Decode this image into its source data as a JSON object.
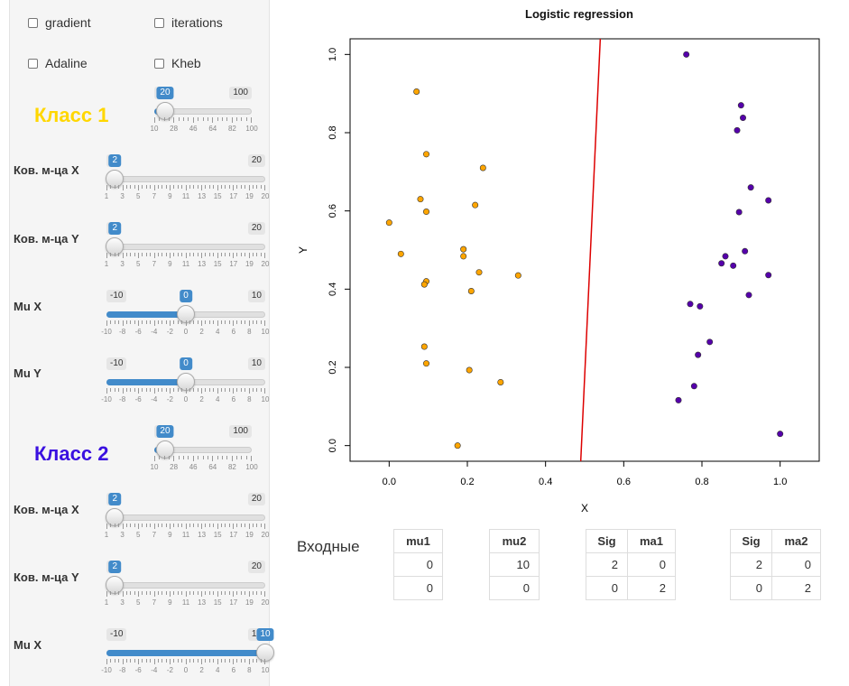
{
  "checkboxes": [
    {
      "label": "gradient",
      "checked": false
    },
    {
      "label": "iterations",
      "checked": false
    },
    {
      "label": "Adaline",
      "checked": false
    },
    {
      "label": "Kheb",
      "checked": false
    }
  ],
  "class1": {
    "title": "Класс 1",
    "color": "#FFD700",
    "n": {
      "min": "10",
      "max": "100",
      "value": "20",
      "ticks": [
        "10",
        "28",
        "46",
        "64",
        "82",
        "100"
      ]
    },
    "cov_x": {
      "label": "Ков. м-ца X",
      "min": "1",
      "max": "20",
      "value": "2",
      "ticks": [
        "1",
        "3",
        "5",
        "7",
        "9",
        "11",
        "13",
        "15",
        "17",
        "19",
        "20"
      ]
    },
    "cov_y": {
      "label": "Ков. м-ца Y",
      "min": "1",
      "max": "20",
      "value": "2",
      "ticks": [
        "1",
        "3",
        "5",
        "7",
        "9",
        "11",
        "13",
        "15",
        "17",
        "19",
        "20"
      ]
    },
    "mu_x": {
      "label": "Mu X",
      "min": "-10",
      "max": "10",
      "value": "0",
      "ticks": [
        "-10",
        "-8",
        "-6",
        "-4",
        "-2",
        "0",
        "2",
        "4",
        "6",
        "8",
        "10"
      ]
    },
    "mu_y": {
      "label": "Mu Y",
      "min": "-10",
      "max": "10",
      "value": "0",
      "ticks": [
        "-10",
        "-8",
        "-6",
        "-4",
        "-2",
        "0",
        "2",
        "4",
        "6",
        "8",
        "10"
      ]
    }
  },
  "class2": {
    "title": "Класс 2",
    "color": "#3a10e0",
    "n": {
      "min": "10",
      "max": "100",
      "value": "20",
      "ticks": [
        "10",
        "28",
        "46",
        "64",
        "82",
        "100"
      ]
    },
    "cov_x": {
      "label": "Ков. м-ца X",
      "min": "1",
      "max": "20",
      "value": "2",
      "ticks": [
        "1",
        "3",
        "5",
        "7",
        "9",
        "11",
        "13",
        "15",
        "17",
        "19",
        "20"
      ]
    },
    "cov_y": {
      "label": "Ков. м-ца Y",
      "min": "1",
      "max": "20",
      "value": "2",
      "ticks": [
        "1",
        "3",
        "5",
        "7",
        "9",
        "11",
        "13",
        "15",
        "17",
        "19",
        "20"
      ]
    },
    "mu_x": {
      "label": "Mu X",
      "min": "-10",
      "max": "10",
      "value": "10",
      "ticks": [
        "-10",
        "-8",
        "-6",
        "-4",
        "-2",
        "0",
        "2",
        "4",
        "6",
        "8",
        "10"
      ]
    }
  },
  "chart_data": {
    "type": "scatter",
    "title": "Logistic regression",
    "xlabel": "X",
    "ylabel": "Y",
    "xlim": [
      -0.1,
      1.1
    ],
    "ylim": [
      -0.04,
      1.04
    ],
    "xticks": [
      "0.0",
      "0.2",
      "0.4",
      "0.6",
      "0.8",
      "1.0"
    ],
    "yticks": [
      "0.0",
      "0.2",
      "0.4",
      "0.6",
      "0.8",
      "1.0"
    ],
    "series": [
      {
        "color": "#FFA500",
        "points": [
          [
            0.07,
            0.905
          ],
          [
            0.095,
            0.745
          ],
          [
            0.24,
            0.71
          ],
          [
            0.08,
            0.63
          ],
          [
            0.22,
            0.615
          ],
          [
            0.095,
            0.598
          ],
          [
            0.0,
            0.57
          ],
          [
            0.19,
            0.502
          ],
          [
            0.03,
            0.49
          ],
          [
            0.19,
            0.484
          ],
          [
            0.23,
            0.443
          ],
          [
            0.33,
            0.435
          ],
          [
            0.095,
            0.42
          ],
          [
            0.09,
            0.412
          ],
          [
            0.21,
            0.395
          ],
          [
            0.09,
            0.253
          ],
          [
            0.095,
            0.21
          ],
          [
            0.205,
            0.193
          ],
          [
            0.285,
            0.162
          ],
          [
            0.175,
            0.0
          ]
        ]
      },
      {
        "color": "#5500AA",
        "points": [
          [
            0.76,
            1.0
          ],
          [
            0.9,
            0.87
          ],
          [
            0.905,
            0.838
          ],
          [
            0.89,
            0.806
          ],
          [
            0.925,
            0.66
          ],
          [
            0.97,
            0.627
          ],
          [
            0.895,
            0.597
          ],
          [
            0.91,
            0.497
          ],
          [
            0.86,
            0.484
          ],
          [
            0.85,
            0.466
          ],
          [
            0.88,
            0.46
          ],
          [
            0.97,
            0.436
          ],
          [
            0.92,
            0.385
          ],
          [
            0.77,
            0.362
          ],
          [
            0.795,
            0.356
          ],
          [
            0.82,
            0.265
          ],
          [
            0.79,
            0.232
          ],
          [
            0.78,
            0.152
          ],
          [
            0.74,
            0.116
          ],
          [
            1.0,
            0.03
          ]
        ]
      }
    ],
    "decision_line": {
      "color": "#DD0000",
      "points": [
        [
          0.49,
          -0.04
        ],
        [
          0.54,
          1.04
        ]
      ]
    }
  },
  "inputs": {
    "label": "Входные",
    "tables": [
      {
        "headers": [
          "mu1"
        ],
        "rows": [
          [
            "0"
          ],
          [
            "0"
          ]
        ]
      },
      {
        "headers": [
          "mu2"
        ],
        "rows": [
          [
            "10"
          ],
          [
            "0"
          ]
        ]
      },
      {
        "headers": [
          "Sig",
          "ma1"
        ],
        "rows": [
          [
            "2",
            "0"
          ],
          [
            "0",
            "2"
          ]
        ]
      },
      {
        "headers": [
          "Sig",
          "ma2"
        ],
        "rows": [
          [
            "2",
            "0"
          ],
          [
            "0",
            "2"
          ]
        ]
      }
    ]
  }
}
